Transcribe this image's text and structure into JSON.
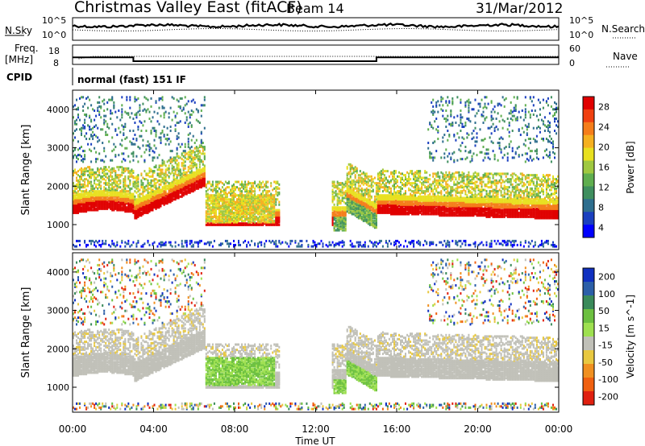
{
  "header": {
    "station": "Christmas Valley East (fitACF)",
    "beam": "Beam 14",
    "date": "31/Mar/2012"
  },
  "top_panels": {
    "nsky_label": "N.Sky",
    "nsearch_label": "N.Search",
    "noise_ticks_left": [
      "10^5",
      "10^0"
    ],
    "noise_ticks_right": [
      "10^5",
      "10^0"
    ],
    "freq_label_line1": "Freq.",
    "freq_label_line2": "[MHz]",
    "freq_ticks": [
      "18",
      "8"
    ],
    "nave_label": "Nave",
    "nave_ticks": [
      "60",
      "0"
    ],
    "cpid_label": "CPID",
    "cpid_text": "normal (fast) 151 IF"
  },
  "chart_data": [
    {
      "type": "heatmap",
      "panel": "power",
      "ylabel": "Slant Range [km]",
      "yticks": [
        "1000",
        "2000",
        "3000",
        "4000"
      ],
      "ylim": [
        350,
        4500
      ],
      "colorbar_label": "Power [dB]",
      "colorbar_ticks": [
        "4",
        "8",
        "12",
        "16",
        "20",
        "24",
        "28"
      ],
      "colorbar_range": [
        0,
        30
      ],
      "colors": [
        "#0000ff",
        "#1a3fbf",
        "#2e6e8e",
        "#3f8f5f",
        "#5fae4f",
        "#9fc840",
        "#e8e020",
        "#f5b020",
        "#f57d1a",
        "#f04010",
        "#e00000"
      ]
    },
    {
      "type": "heatmap",
      "panel": "velocity",
      "ylabel": "Slant Range [km]",
      "yticks": [
        "1000",
        "2000",
        "3000",
        "4000"
      ],
      "ylim": [
        350,
        4500
      ],
      "colorbar_label": "Velocity [m s^-1]",
      "colorbar_ticks": [
        "200",
        "100",
        "50",
        "15",
        "-15",
        "-50",
        "-100",
        "-200"
      ],
      "colors": [
        "#1030c0",
        "#2c5fa8",
        "#3a8a5a",
        "#6cc040",
        "#9ee050",
        "#c0c0b8",
        "#e8c840",
        "#f09020",
        "#f06010",
        "#e02010"
      ]
    }
  ],
  "x_axis": {
    "label": "Time UT",
    "ticks": [
      "00:00",
      "04:00",
      "08:00",
      "12:00",
      "16:00",
      "20:00",
      "00:00"
    ]
  }
}
